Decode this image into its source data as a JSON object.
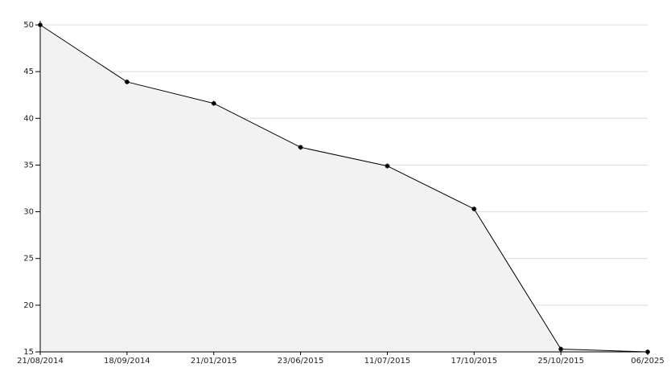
{
  "chart_data": {
    "type": "area",
    "categories": [
      "21/08/2014",
      "18/09/2014",
      "21/01/2015",
      "23/06/2015",
      "11/07/2015",
      "17/10/2015",
      "25/10/2015",
      "06/2025"
    ],
    "values": [
      50,
      43.9,
      41.6,
      36.9,
      34.9,
      30.3,
      15.3,
      15.0
    ],
    "color": "#000000",
    "fill": "#f2f2f2",
    "ylim": [
      15,
      50
    ],
    "yticks": [
      15,
      20,
      25,
      30,
      35,
      40,
      45,
      50
    ],
    "grid": true
  }
}
